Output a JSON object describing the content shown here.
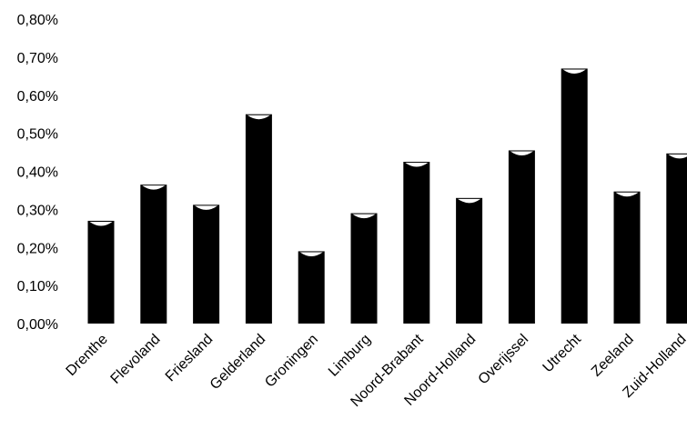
{
  "chart_data": {
    "type": "bar",
    "categories": [
      "Drenthe",
      "Flevoland",
      "Friesland",
      "Gelderland",
      "Groningen",
      "Limburg",
      "Noord-Brabant",
      "Noord-Holland",
      "Overijssel",
      "Utrecht",
      "Zeeland",
      "Zuid-Holland"
    ],
    "values": [
      0.27,
      0.365,
      0.312,
      0.55,
      0.19,
      0.29,
      0.425,
      0.33,
      0.455,
      0.67,
      0.347,
      0.447
    ],
    "unit": "%",
    "ylim": [
      0,
      0.8
    ],
    "yticks": [
      0,
      0.1,
      0.2,
      0.3,
      0.4,
      0.5,
      0.6,
      0.7,
      0.8
    ],
    "ytick_labels": [
      "0,00%",
      "0,10%",
      "0,20%",
      "0,30%",
      "0,40%",
      "0,50%",
      "0,60%",
      "0,70%",
      "0,80%"
    ],
    "title": "",
    "xlabel": "",
    "ylabel": "",
    "grid": false,
    "legend": "none",
    "bar_color": "#000000"
  }
}
